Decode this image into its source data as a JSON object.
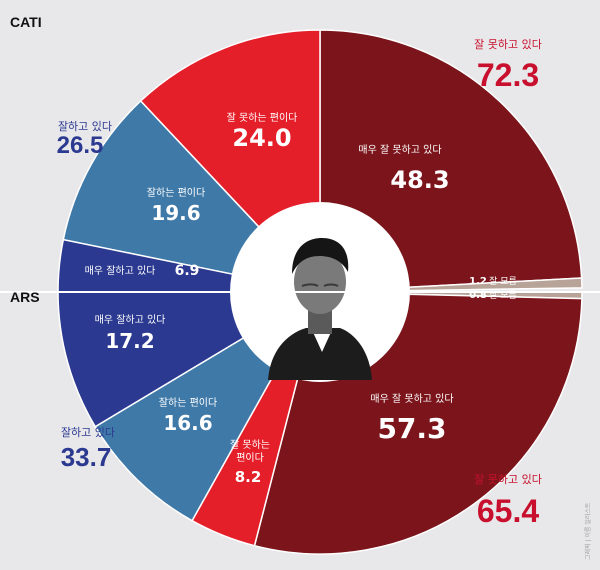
{
  "chart_data": [
    {
      "type": "pie",
      "title": "CATI",
      "colors": {
        "매우 잘 못하고 있다": "#7b151b",
        "잘 못하는 편이다": "#e51f2a",
        "잘하는 편이다": "#3f79a8",
        "매우 잘하고 있다": "#2b3990",
        "잘 모름": "#b7a397"
      },
      "slices": [
        {
          "label": "매우 잘 못하고 있다",
          "value": 48.3
        },
        {
          "label": "잘 못하는 편이다",
          "value": 24.0
        },
        {
          "label": "잘하는 편이다",
          "value": 19.6
        },
        {
          "label": "매우 잘하고 있다",
          "value": 6.9
        },
        {
          "label": "잘 모름",
          "value": 1.2
        }
      ],
      "totals": [
        {
          "label": "잘 못하고 있다",
          "value": "72.3"
        },
        {
          "label": "잘하고 있다",
          "value": "26.5"
        }
      ]
    },
    {
      "type": "pie",
      "title": "ARS",
      "slices": [
        {
          "label": "매우 잘 못하고 있다",
          "value": 57.3
        },
        {
          "label": "잘 못하는 편이다",
          "value": 8.2
        },
        {
          "label": "잘하는 편이다",
          "value": 16.6
        },
        {
          "label": "매우 잘하고 있다",
          "value": 17.2
        },
        {
          "label": "잘 모름",
          "value": 0.8
        }
      ],
      "totals": [
        {
          "label": "잘 못하고 있다",
          "value": "65.4"
        },
        {
          "label": "잘하고 있다",
          "value": "33.7"
        }
      ]
    }
  ],
  "labels": {
    "cati_very_bad": "매우 잘 못하고 있다",
    "cati_very_bad_value": "48.3",
    "cati_bad": "잘 못하는 편이다",
    "cati_bad_value": "24.0",
    "cati_good": "잘하는 편이다",
    "cati_good_value": "19.6",
    "cati_very_good": "매우 잘하고 있다",
    "cati_very_good_value": "6.9",
    "cati_dk_value": "1.2",
    "cati_dk": "잘 모름",
    "ars_very_bad": "매우 잘 못하고 있다",
    "ars_very_bad_value": "57.3",
    "ars_bad_line1": "잘 못하는",
    "ars_bad_line2": "편이다",
    "ars_bad_value": "8.2",
    "ars_good": "잘하는 편이다",
    "ars_good_value": "16.6",
    "ars_very_good": "매우 잘하고 있다",
    "ars_very_good_value": "17.2",
    "ars_dk_value": "0.8",
    "ars_dk": "잘 모름",
    "cati_bad_total_label": "잘 못하고 있다",
    "cati_bad_total": "72.3",
    "cati_good_total_label": "잘하고 있다",
    "cati_good_total": "26.5",
    "ars_good_total_label": "잘하고 있다",
    "ars_good_total": "33.7",
    "ars_bad_total_label": "잘 못하고 있다",
    "ars_bad_total": "65.4",
    "cati_group": "CATI",
    "ars_group": "ARS",
    "credit": "그래픽 | 이름 일러스트"
  }
}
